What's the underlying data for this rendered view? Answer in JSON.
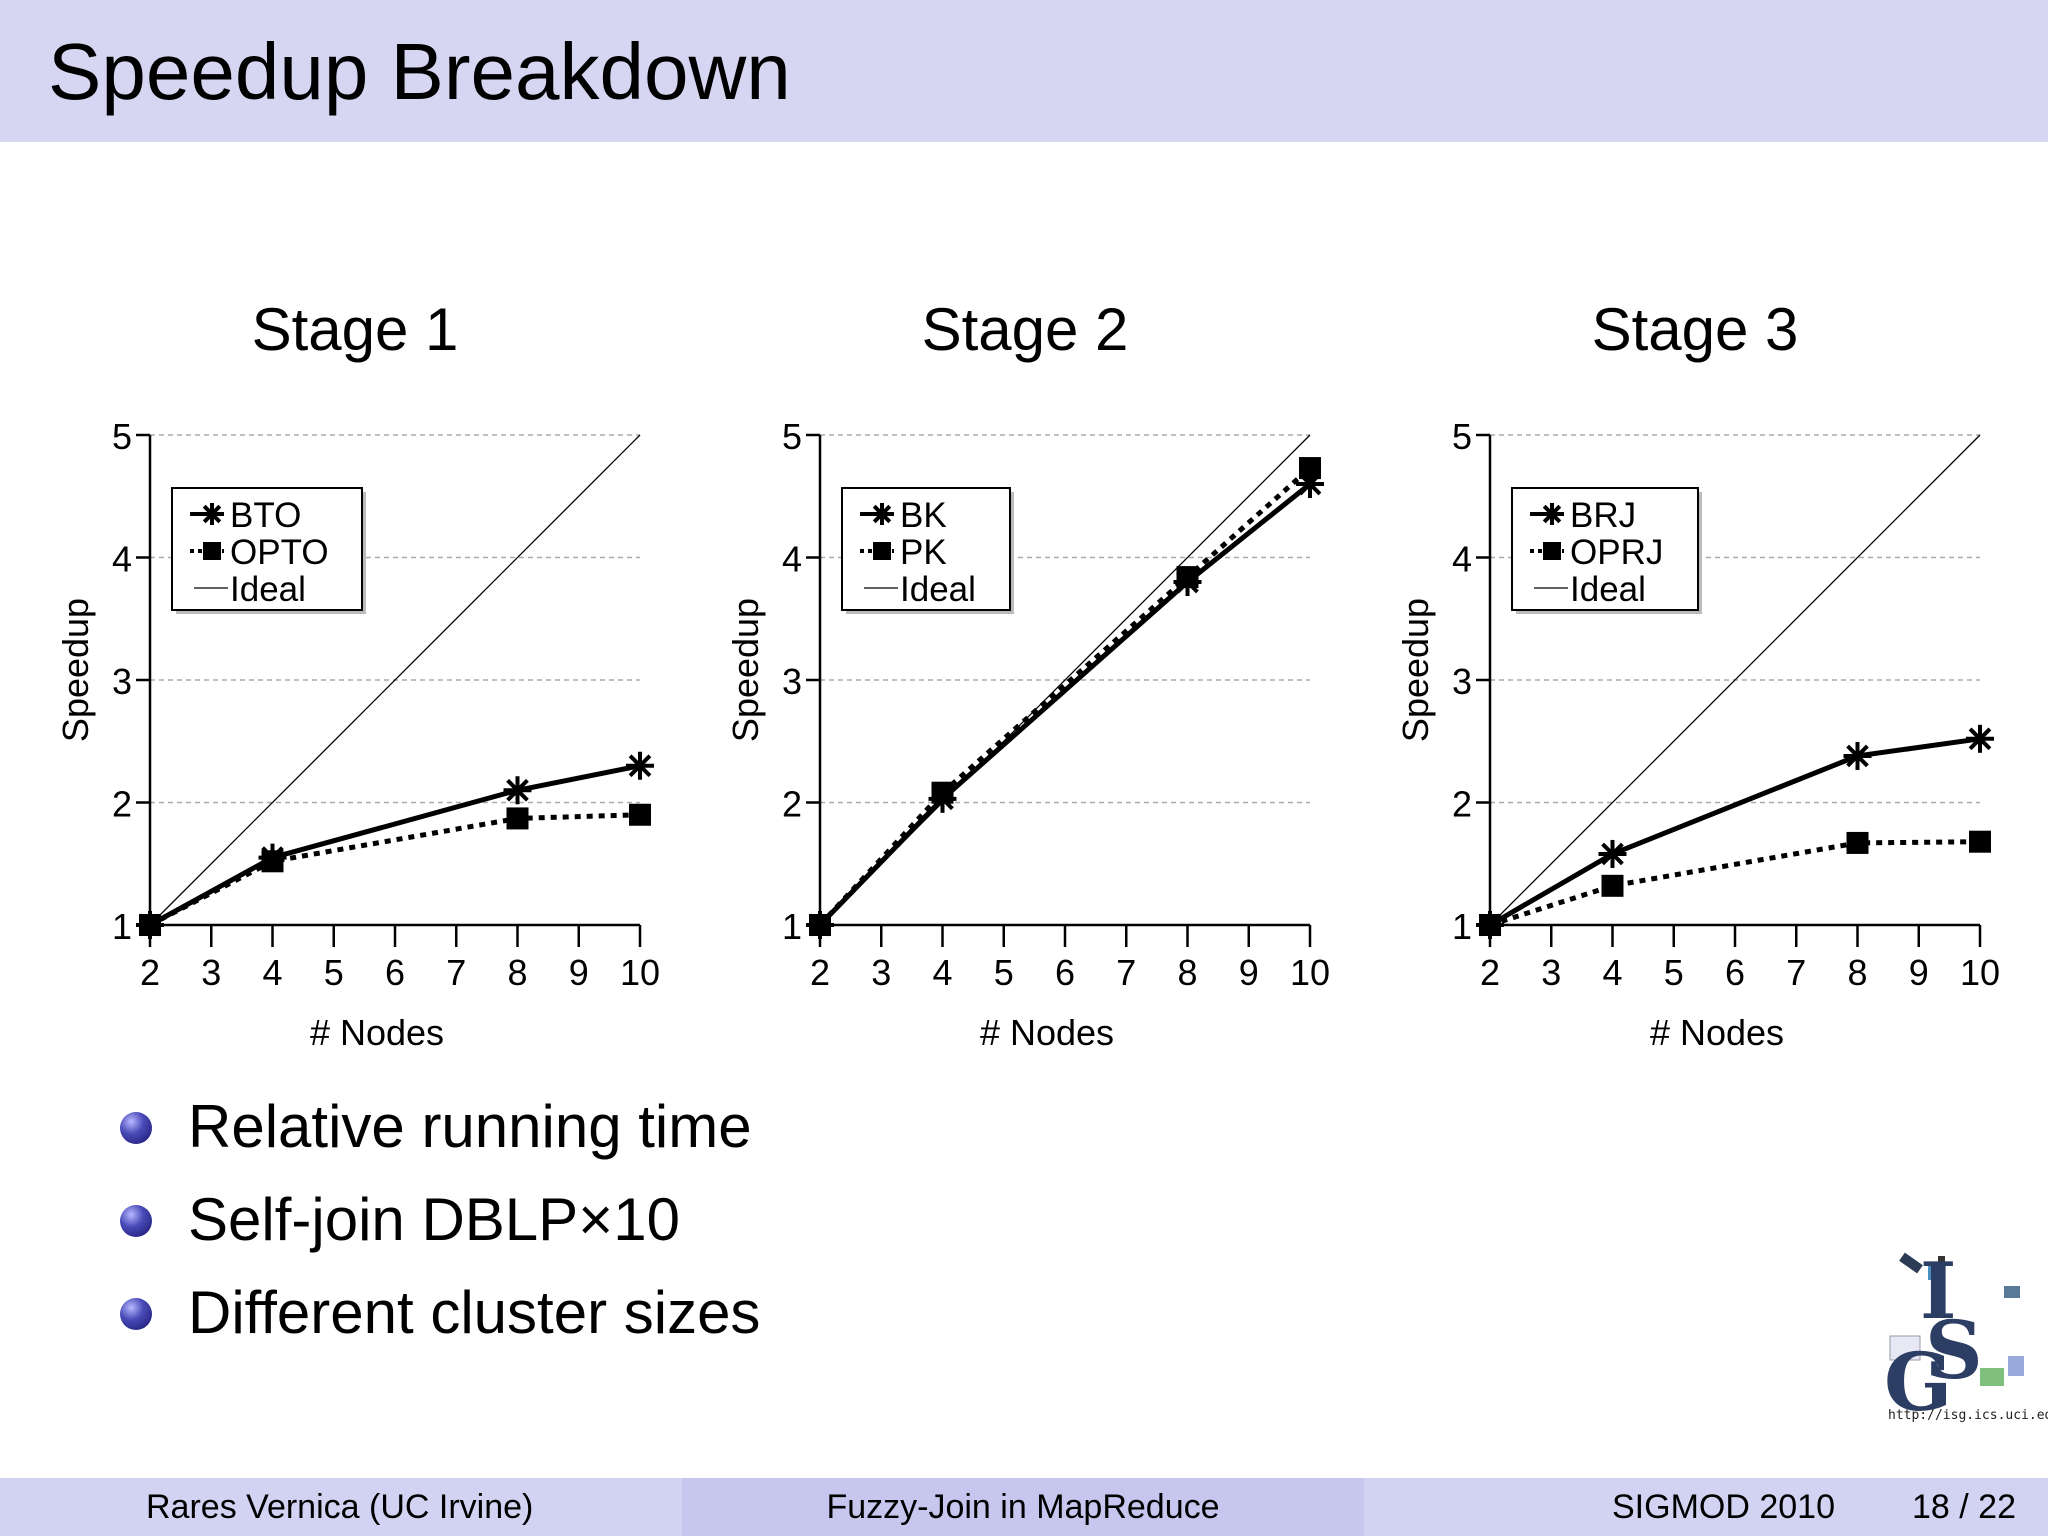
{
  "slide": {
    "title": "Speedup Breakdown"
  },
  "bullets": [
    "Relative running time",
    "Self-join DBLP×10",
    "Different cluster sizes"
  ],
  "footer": {
    "author": "Rares Vernica  (UC Irvine)",
    "talk": "Fuzzy-Join in MapReduce",
    "venue": "SIGMOD 2010",
    "page": "18 / 22"
  },
  "logo": {
    "url": "http://isg.ics.uci.edu",
    "letters": "ISG"
  },
  "chart_data": [
    {
      "type": "line",
      "title": "Stage 1",
      "xlabel": "# Nodes",
      "ylabel": "Speedup",
      "x_ticks": [
        2,
        3,
        4,
        5,
        6,
        7,
        8,
        9,
        10
      ],
      "y_ticks": [
        1,
        2,
        3,
        4,
        5
      ],
      "xlim": [
        2,
        10
      ],
      "ylim": [
        1,
        5
      ],
      "grid": true,
      "legend_position": "top-left",
      "series": [
        {
          "name": "BTO",
          "marker": "asterisk",
          "style": "solid",
          "x": [
            2,
            4,
            8,
            10
          ],
          "values": [
            1,
            1.55,
            2.1,
            2.3
          ]
        },
        {
          "name": "OPTO",
          "marker": "square",
          "style": "dotted",
          "x": [
            2,
            4,
            8,
            10
          ],
          "values": [
            1,
            1.52,
            1.87,
            1.9
          ]
        },
        {
          "name": "Ideal",
          "marker": "none",
          "style": "thin",
          "x": [
            2,
            10
          ],
          "values": [
            1,
            5
          ]
        }
      ]
    },
    {
      "type": "line",
      "title": "Stage 2",
      "xlabel": "# Nodes",
      "ylabel": "Speedup",
      "x_ticks": [
        2,
        3,
        4,
        5,
        6,
        7,
        8,
        9,
        10
      ],
      "y_ticks": [
        1,
        2,
        3,
        4,
        5
      ],
      "xlim": [
        2,
        10
      ],
      "ylim": [
        1,
        5
      ],
      "grid": true,
      "legend_position": "top-left",
      "series": [
        {
          "name": "BK",
          "marker": "asterisk",
          "style": "solid",
          "x": [
            2,
            4,
            8,
            10
          ],
          "values": [
            1,
            2.03,
            3.8,
            4.6
          ]
        },
        {
          "name": "PK",
          "marker": "square",
          "style": "dotted",
          "x": [
            2,
            4,
            8,
            10
          ],
          "values": [
            1,
            2.08,
            3.84,
            4.73
          ]
        },
        {
          "name": "Ideal",
          "marker": "none",
          "style": "thin",
          "x": [
            2,
            10
          ],
          "values": [
            1,
            5
          ]
        }
      ]
    },
    {
      "type": "line",
      "title": "Stage 3",
      "xlabel": "# Nodes",
      "ylabel": "Speedup",
      "x_ticks": [
        2,
        3,
        4,
        5,
        6,
        7,
        8,
        9,
        10
      ],
      "y_ticks": [
        1,
        2,
        3,
        4,
        5
      ],
      "xlim": [
        2,
        10
      ],
      "ylim": [
        1,
        5
      ],
      "grid": true,
      "legend_position": "top-left",
      "series": [
        {
          "name": "BRJ",
          "marker": "asterisk",
          "style": "solid",
          "x": [
            2,
            4,
            8,
            10
          ],
          "values": [
            1,
            1.58,
            2.38,
            2.52
          ]
        },
        {
          "name": "OPRJ",
          "marker": "square",
          "style": "dotted",
          "x": [
            2,
            4,
            8,
            10
          ],
          "values": [
            1,
            1.32,
            1.67,
            1.68
          ]
        },
        {
          "name": "Ideal",
          "marker": "none",
          "style": "thin",
          "x": [
            2,
            10
          ],
          "values": [
            1,
            5
          ]
        }
      ]
    }
  ]
}
